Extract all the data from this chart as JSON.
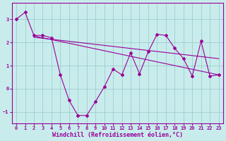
{
  "xlabel": "Windchill (Refroidissement éolien,°C)",
  "bg_color": "#c8ecec",
  "line_color": "#990099",
  "grid_color": "#a0cccc",
  "ylim": [
    -1.5,
    3.7
  ],
  "xlim": [
    -0.5,
    23.5
  ],
  "yticks": [
    -1,
    0,
    1,
    2,
    3
  ],
  "xticks": [
    0,
    1,
    2,
    3,
    4,
    5,
    6,
    7,
    8,
    9,
    10,
    11,
    12,
    13,
    14,
    15,
    16,
    17,
    18,
    19,
    20,
    21,
    22,
    23
  ],
  "line1_x": [
    0,
    1,
    2,
    3,
    4,
    5,
    6,
    7,
    8,
    9,
    10,
    11,
    12,
    13,
    14,
    15,
    16,
    17,
    18,
    19,
    20,
    21,
    22,
    23
  ],
  "line1_y": [
    3.0,
    3.3,
    2.3,
    2.3,
    2.2,
    0.6,
    -0.5,
    -1.15,
    -1.15,
    -0.55,
    0.08,
    0.85,
    0.6,
    1.55,
    0.65,
    1.6,
    2.35,
    2.3,
    1.75,
    1.3,
    0.55,
    2.05,
    0.55,
    0.6
  ],
  "line2_x": [
    2,
    23
  ],
  "line2_y": [
    2.28,
    0.6
  ],
  "line3_x": [
    2,
    14,
    23
  ],
  "line3_y": [
    2.22,
    1.55,
    0.6
  ],
  "line4_x": [
    2,
    23
  ],
  "line4_y": [
    2.22,
    1.3
  ],
  "tick_fontsize": 5,
  "xlabel_fontsize": 6
}
